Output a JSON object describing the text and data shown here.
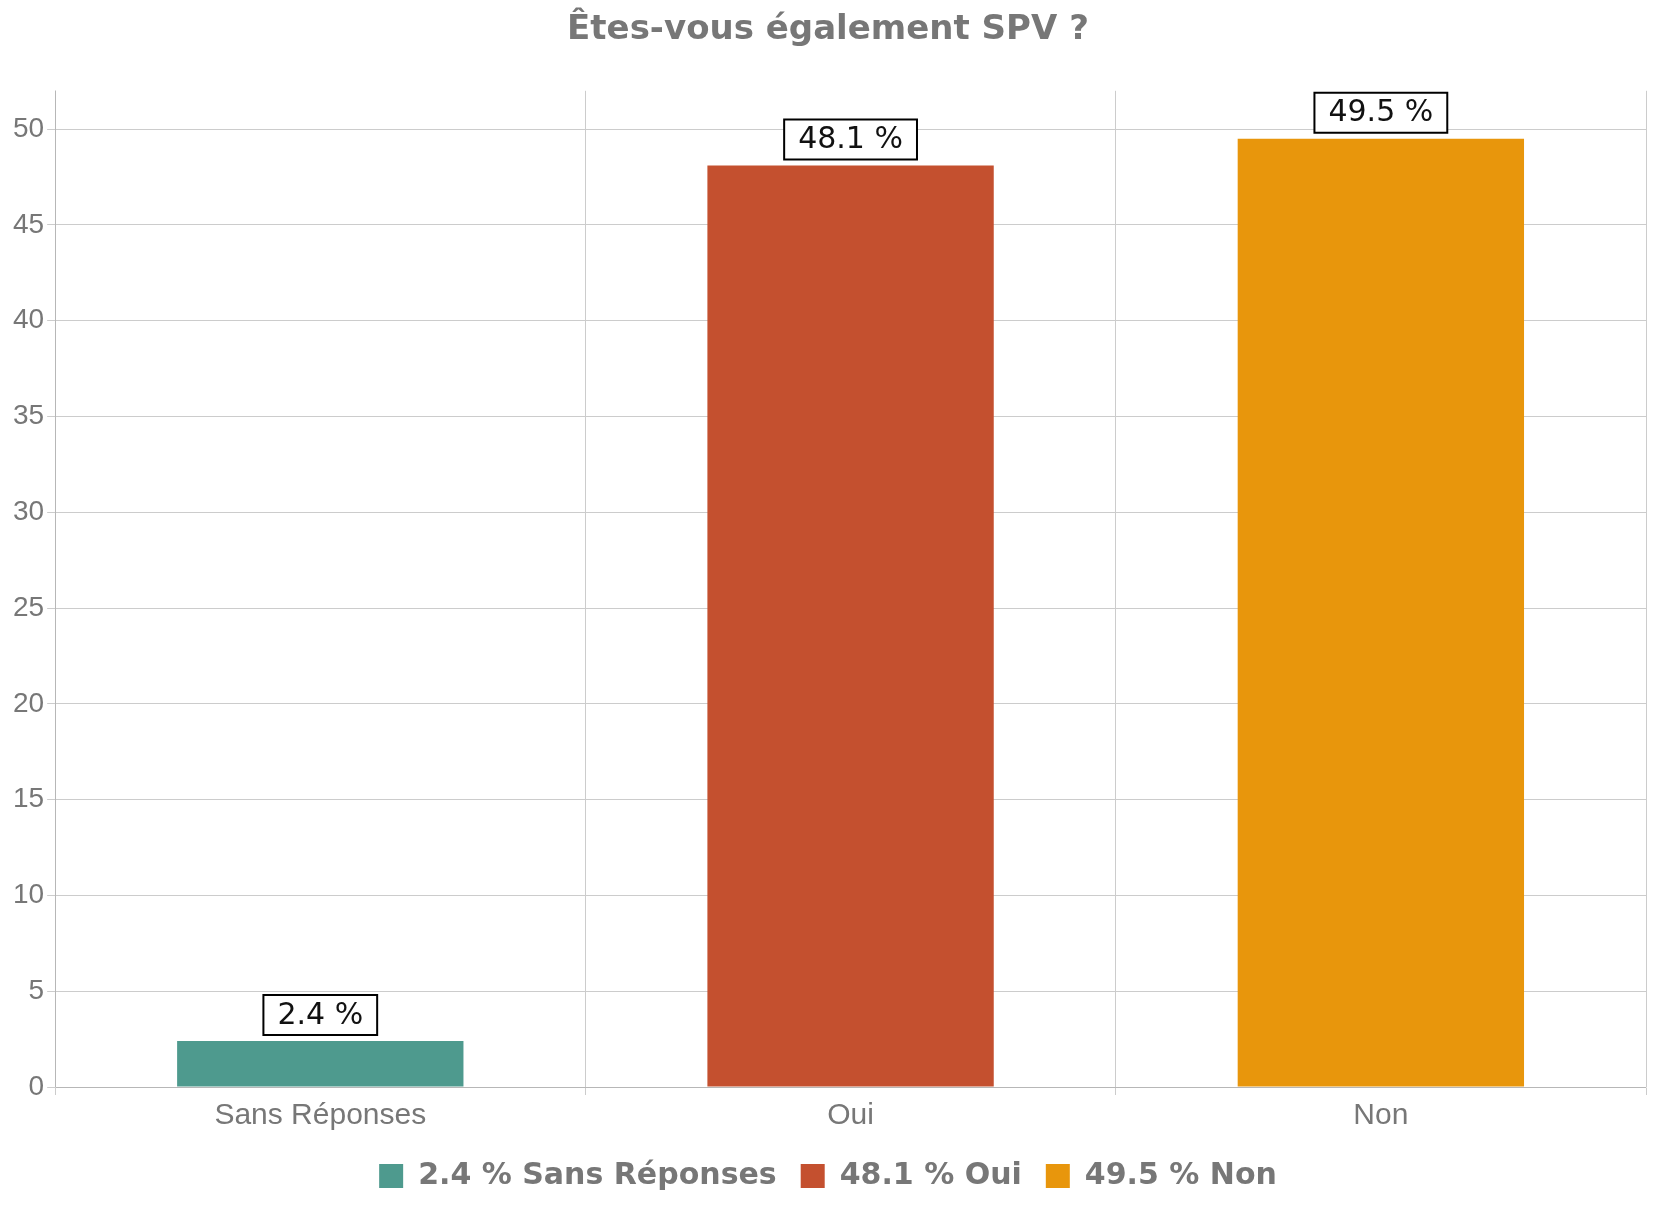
{
  "chart_data": {
    "type": "bar",
    "title": "Êtes-vous également SPV ?",
    "categories": [
      "Sans Réponses",
      "Oui",
      "Non"
    ],
    "stacked": true,
    "series": [
      {
        "name": "2.4 % Sans Réponses",
        "color": "#4e9a8e",
        "values": [
          2.4,
          null,
          null
        ],
        "value_labels": [
          "2.4 %",
          null,
          null
        ]
      },
      {
        "name": "48.1 % Oui",
        "color": "#c4502f",
        "values": [
          null,
          48.1,
          null
        ],
        "value_labels": [
          null,
          "48.1 %",
          null
        ]
      },
      {
        "name": "49.5 % Non",
        "color": "#e8960c",
        "values": [
          null,
          null,
          49.5
        ],
        "value_labels": [
          null,
          null,
          "49.5 %"
        ]
      }
    ],
    "ylim": [
      0,
      52
    ],
    "yticks": [
      0,
      5,
      10,
      15,
      20,
      25,
      30,
      35,
      40,
      45,
      50
    ],
    "grid": true,
    "legend": "bottom"
  }
}
